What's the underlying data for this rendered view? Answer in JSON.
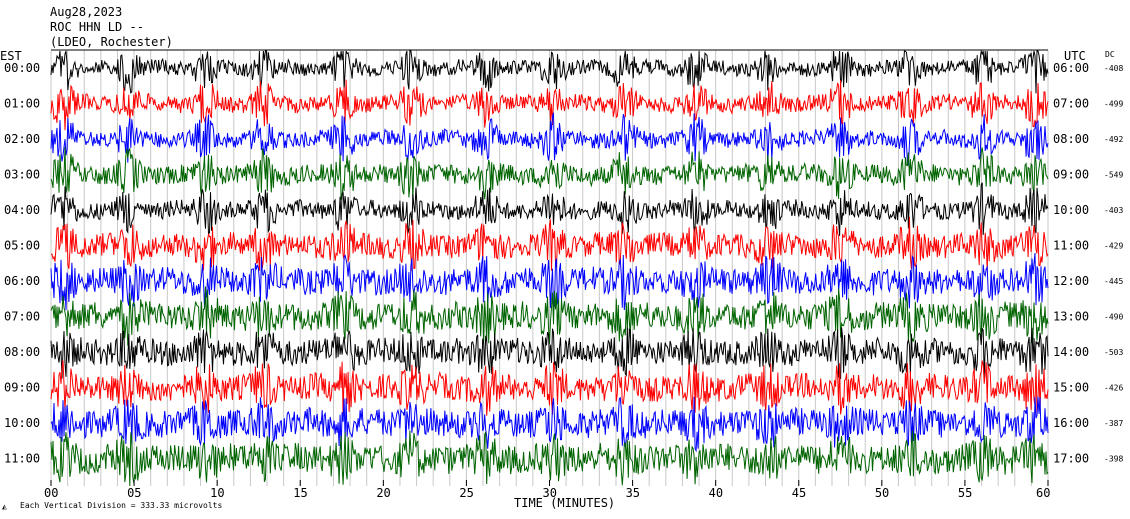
{
  "header": {
    "date": "Aug28,2023",
    "station": "ROC HHN LD --",
    "network": "(LDEO, Rochester)"
  },
  "left_axis_title": "EST",
  "right_axis_title": "UTC",
  "dc_title": "DC",
  "chart_data": {
    "type": "line",
    "title": "",
    "xlabel": "TIME (MINUTES)",
    "xlim": [
      0,
      60
    ],
    "x_ticks": [
      "00",
      "05",
      "10",
      "15",
      "20",
      "25",
      "30",
      "35",
      "40",
      "45",
      "50",
      "55",
      "60"
    ],
    "footnote": "Each Vertical Division =  333.33 microvolts",
    "series": [
      {
        "est": "00:00",
        "utc": "06:00",
        "dc": "-408",
        "color": "#000000"
      },
      {
        "est": "01:00",
        "utc": "07:00",
        "dc": "-499",
        "color": "#ff0000"
      },
      {
        "est": "02:00",
        "utc": "08:00",
        "dc": "-492",
        "color": "#0000ff"
      },
      {
        "est": "03:00",
        "utc": "09:00",
        "dc": "-549",
        "color": "#006400"
      },
      {
        "est": "04:00",
        "utc": "10:00",
        "dc": "-403",
        "color": "#000000"
      },
      {
        "est": "05:00",
        "utc": "11:00",
        "dc": "-429",
        "color": "#ff0000"
      },
      {
        "est": "06:00",
        "utc": "12:00",
        "dc": "-445",
        "color": "#0000ff"
      },
      {
        "est": "07:00",
        "utc": "13:00",
        "dc": "-490",
        "color": "#006400"
      },
      {
        "est": "08:00",
        "utc": "14:00",
        "dc": "-503",
        "color": "#000000"
      },
      {
        "est": "09:00",
        "utc": "15:00",
        "dc": "-426",
        "color": "#ff0000"
      },
      {
        "est": "10:00",
        "utc": "16:00",
        "dc": "-387",
        "color": "#0000ff"
      },
      {
        "est": "11:00",
        "utc": "17:00",
        "dc": "-398",
        "color": "#006400"
      }
    ],
    "noise_level": [
      0.3,
      0.35,
      0.35,
      0.45,
      0.4,
      0.6,
      0.7,
      0.75,
      0.7,
      0.7,
      0.75,
      0.8
    ],
    "burst_minutes": [
      0.8,
      4.7,
      9.3,
      12.8,
      17.6,
      21.7,
      26.2,
      30.2,
      34.5,
      38.8,
      43.2,
      47.5,
      51.7,
      56.1,
      59.2
    ],
    "grid": true
  }
}
